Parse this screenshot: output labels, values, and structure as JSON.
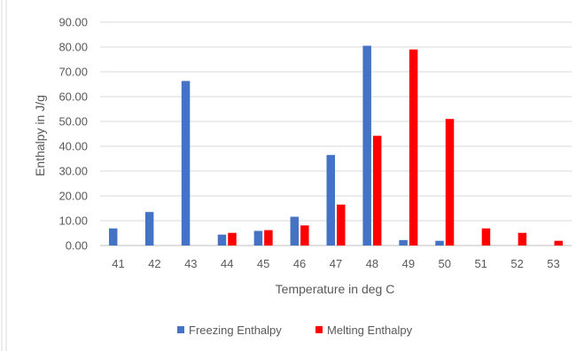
{
  "chart_data": {
    "type": "bar",
    "title": "",
    "xlabel": "Temperature in deg C",
    "ylabel": "Enthalpy in J/g",
    "categories": [
      "41",
      "42",
      "43",
      "44",
      "45",
      "46",
      "47",
      "48",
      "49",
      "50",
      "51",
      "52",
      "53"
    ],
    "ylim": [
      0,
      90
    ],
    "ytick_step": 10,
    "ytick_labels": [
      "0.00",
      "10.00",
      "20.00",
      "30.00",
      "40.00",
      "50.00",
      "60.00",
      "70.00",
      "80.00",
      "90.00"
    ],
    "grid": true,
    "legend_position": "bottom",
    "series": [
      {
        "name": "Freezing Enthalpy",
        "color": "#4472C4",
        "values": [
          6.9,
          13.5,
          66.3,
          4.4,
          5.9,
          11.6,
          36.5,
          80.5,
          2.2,
          1.9,
          0,
          0,
          0
        ]
      },
      {
        "name": "Melting Enthalpy",
        "color": "#FF0000",
        "values": [
          0,
          0,
          0,
          5.1,
          6.2,
          8.1,
          16.5,
          44.2,
          79.0,
          51.0,
          6.9,
          5.1,
          1.9
        ]
      }
    ]
  }
}
